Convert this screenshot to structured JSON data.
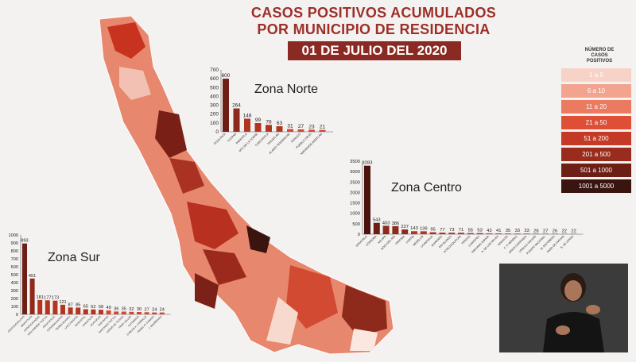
{
  "title": {
    "line1": "CASOS POSITIVOS ACUMULADOS",
    "line2": "POR MUNICIPIO DE RESIDENCIA",
    "date": "01 DE JULIO DEL 2020"
  },
  "legend": {
    "title_lines": [
      "NÚMERO DE",
      "CASOS",
      "POSITIVOS"
    ],
    "items": [
      {
        "label": "1 a 5",
        "color": "#f7d2c7"
      },
      {
        "label": "6 a 10",
        "color": "#f2a48f"
      },
      {
        "label": "11 a 20",
        "color": "#ea7a60"
      },
      {
        "label": "21 a 50",
        "color": "#de4f36"
      },
      {
        "label": "51 a 200",
        "color": "#c53a26"
      },
      {
        "label": "201 a 500",
        "color": "#9a2c1d"
      },
      {
        "label": "501 a 1000",
        "color": "#6d1f16"
      },
      {
        "label": "1001 a 5000",
        "color": "#3a1510"
      }
    ]
  },
  "chart_data": [
    {
      "type": "bar",
      "zone_label": "Zona Norte",
      "categories": [
        "POZA RICA",
        "TUXPAN",
        "PAPANTLA",
        "MTZ DE LA TORRE",
        "COATZINTLA",
        "TIHUATLÁN",
        "ÁLAMO TEMAPACHE",
        "PÁNUCO",
        "PUEBLO VIEJO",
        "NARANJOS AMATLÁN"
      ],
      "values": [
        600,
        264,
        148,
        99,
        78,
        63,
        31,
        27,
        23,
        21
      ],
      "yticks": [
        0,
        100,
        200,
        300,
        400,
        500,
        600,
        700
      ],
      "ylim": [
        0,
        700
      ]
    },
    {
      "type": "bar",
      "zone_label": "Zona Centro",
      "categories": [
        "VERACRUZ",
        "CÓRDOBA",
        "XALAPA",
        "BOCA DEL RÍO",
        "ORIZABA",
        "FORTÍN",
        "MEDELLÍN",
        "LA ANTIGUA",
        "ALVARADO",
        "RÍO BLANCO",
        "IXTACZOQUITLÁN",
        "PEROTE",
        "COATEPEC",
        "EMILIANO ZAPATA",
        "A. DE LOS REYES",
        "NOGALES",
        "C. P. MÉNDEZ",
        "JESÚS CARRANZA",
        "ÚRSULO GALVÁN",
        "PUENTE NACIONAL",
        "M. ESCOBEDO",
        "PASO DE OVEJAS",
        "S. DE LERDO"
      ],
      "values": [
        3283,
        543,
        403,
        386,
        227,
        143,
        139,
        95,
        77,
        73,
        71,
        55,
        53,
        43,
        41,
        35,
        33,
        33,
        28,
        27,
        26,
        22,
        22
      ],
      "yticks": [
        0,
        500,
        1000,
        1500,
        2000,
        2500,
        3000,
        3500
      ],
      "ylim": [
        0,
        3500
      ]
    },
    {
      "type": "bar",
      "zone_label": "Zona Sur",
      "categories": [
        "COATZACOALCOS",
        "MINATITLÁN",
        "COSOLEACAQUE",
        "SAN ANDRÉS TUXTLA",
        "AGUA DULCE",
        "COSAMALOAPAN",
        "TIERRA BLANCA",
        "LAS CHOAPAS",
        "NANCHITAL",
        "IXHUATLÁN",
        "ACAYUCAN",
        "HUEYAPAN",
        "SANTIAGO TUXTLA",
        "LERDO DE TEJADA",
        "TRES VALLES",
        "CATEMACO",
        "CARLOS A. CARRILLO",
        "ÁNGEL R. CABADA",
        "J. RODRÍGUEZ"
      ],
      "values": [
        893,
        451,
        181,
        177,
        173,
        121,
        87,
        85,
        65,
        62,
        58,
        49,
        36,
        35,
        32,
        30,
        27,
        24,
        24
      ],
      "yticks": [
        0,
        100,
        200,
        300,
        400,
        500,
        600,
        700,
        800,
        900,
        1000
      ],
      "ylim": [
        0,
        1000
      ]
    }
  ]
}
